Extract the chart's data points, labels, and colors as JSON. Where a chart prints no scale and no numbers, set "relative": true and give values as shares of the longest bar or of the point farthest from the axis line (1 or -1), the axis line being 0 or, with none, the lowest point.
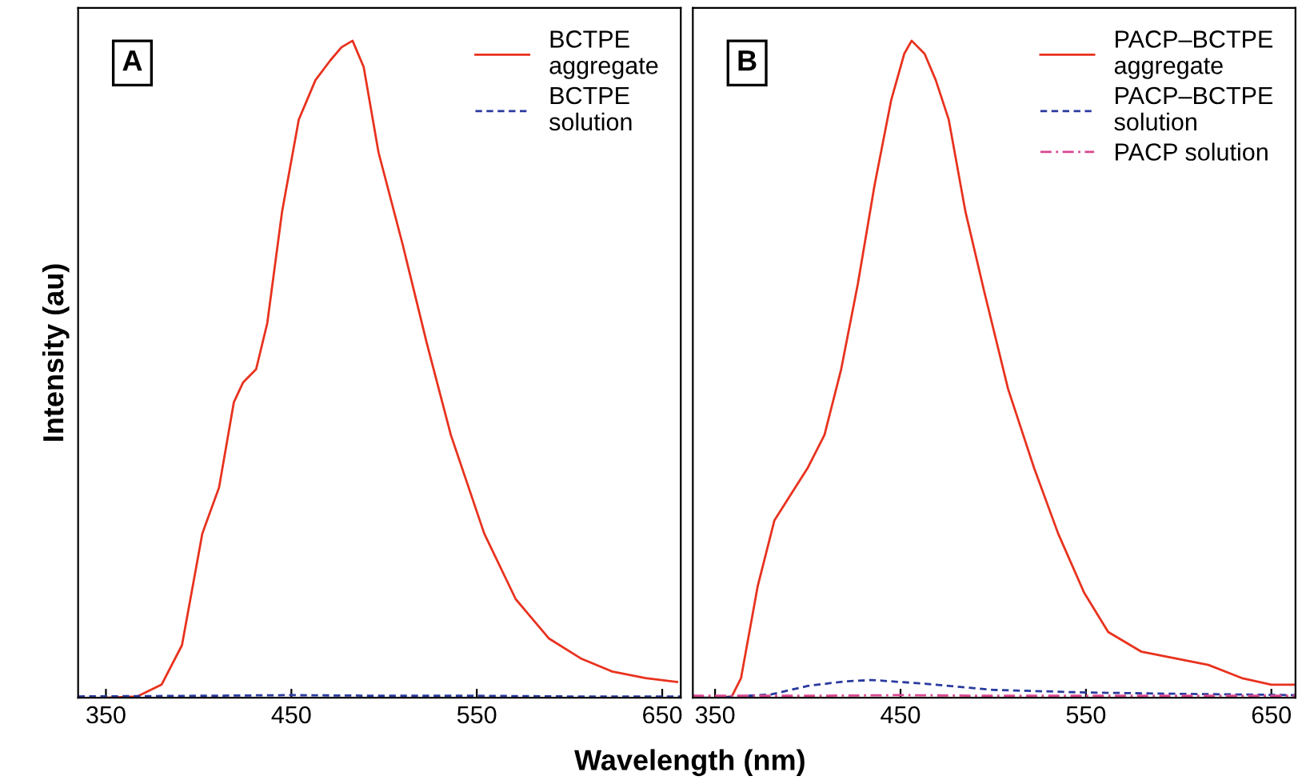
{
  "chart_data": [
    {
      "type": "line",
      "relative": true,
      "xlabel": "Wavelength (nm)",
      "ylabel": "Intensity (au)",
      "xlim": [
        335,
        660
      ],
      "xticks": [
        350,
        450,
        550,
        650
      ],
      "grid": false,
      "legend": "top right",
      "annotations": [
        "A"
      ],
      "series": [
        {
          "name": "BCTPE\naggregate",
          "color": "#e8321e",
          "line_style": "solid",
          "x": [
            350,
            367,
            380,
            391,
            402,
            411,
            419,
            424,
            431,
            437,
            445,
            454,
            463,
            471,
            477,
            483,
            489,
            497,
            510,
            523,
            536,
            554,
            571,
            589,
            606,
            623,
            641,
            658
          ],
          "values": [
            0,
            0.002,
            0.02,
            0.08,
            0.25,
            0.32,
            0.45,
            0.48,
            0.5,
            0.57,
            0.74,
            0.88,
            0.94,
            0.97,
            0.99,
            1.0,
            0.96,
            0.83,
            0.69,
            0.54,
            0.4,
            0.25,
            0.15,
            0.09,
            0.06,
            0.04,
            0.03,
            0.024
          ]
        },
        {
          "name": "BCTPE\nsolution",
          "color": "#2a3a9e",
          "line_style": "dashed",
          "x": [
            335,
            400,
            450,
            500,
            550,
            600,
            660
          ],
          "values": [
            0.002,
            0.003,
            0.004,
            0.003,
            0.003,
            0.002,
            0.002
          ]
        }
      ]
    },
    {
      "type": "line",
      "relative": true,
      "xlim": [
        338,
        663
      ],
      "xticks": [
        350,
        450,
        550,
        650
      ],
      "grid": false,
      "legend": "top right",
      "annotations": [
        "B"
      ],
      "series": [
        {
          "name": "PACP–BCTPE\naggregate",
          "color": "#e8321e",
          "line_style": "solid",
          "x": [
            350,
            359,
            364,
            373,
            382,
            391,
            400,
            409,
            418,
            427,
            436,
            445,
            452,
            456,
            463,
            469,
            476,
            485,
            495,
            508,
            522,
            535,
            549,
            562,
            580,
            598,
            616,
            634,
            650,
            662
          ],
          "values": [
            0,
            0.002,
            0.03,
            0.17,
            0.27,
            0.31,
            0.35,
            0.4,
            0.5,
            0.63,
            0.78,
            0.91,
            0.98,
            1.0,
            0.98,
            0.94,
            0.88,
            0.74,
            0.62,
            0.47,
            0.35,
            0.25,
            0.16,
            0.1,
            0.07,
            0.06,
            0.05,
            0.03,
            0.02,
            0.02
          ]
        },
        {
          "name": "PACP–BCTPE\nsolution",
          "color": "#2a3a9e",
          "line_style": "dashed",
          "x": [
            338,
            350,
            380,
            400,
            420,
            435,
            460,
            500,
            550,
            600,
            663
          ],
          "values": [
            0,
            0,
            0.005,
            0.018,
            0.025,
            0.027,
            0.022,
            0.012,
            0.008,
            0.006,
            0.004
          ]
        },
        {
          "name": "PACP solution",
          "color": "#d9478f",
          "line_style": "dashdot",
          "x": [
            338,
            400,
            450,
            500,
            550,
            600,
            663
          ],
          "values": [
            0.003,
            0.003,
            0.004,
            0.003,
            0.003,
            0.003,
            0.003
          ]
        }
      ]
    }
  ]
}
